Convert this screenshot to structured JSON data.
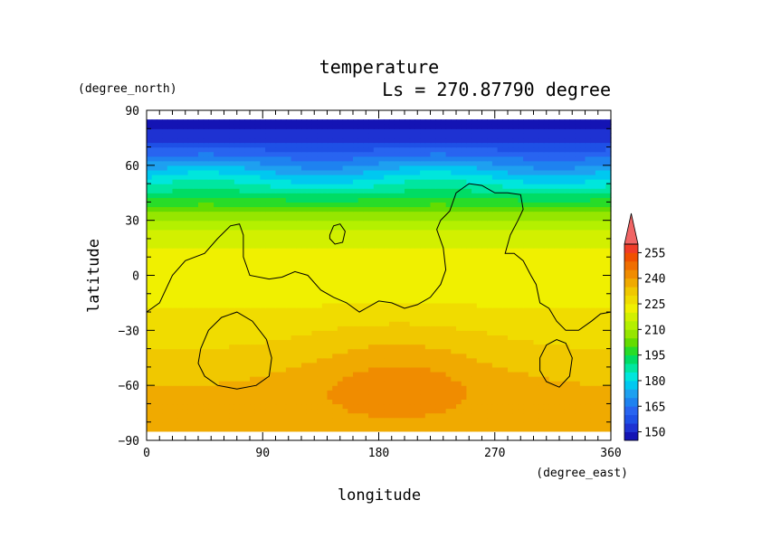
{
  "chart_data": {
    "type": "heatmap",
    "title": "temperature",
    "subtitle": "Ls = 270.87790 degree",
    "xlabel": "longitude",
    "ylabel": "latitude",
    "x_units": "(degree_east)",
    "y_units": "(degree_north)",
    "xlim": [
      0,
      360
    ],
    "ylim": [
      -90,
      90
    ],
    "data_lon_range": [
      0,
      360
    ],
    "data_lat_range": [
      -85,
      85
    ],
    "x_ticks": [
      "0",
      "90",
      "180",
      "270",
      "360"
    ],
    "x_tick_values": [
      0,
      90,
      180,
      270,
      360
    ],
    "y_ticks": [
      "90",
      "60",
      "30",
      "0",
      "−30",
      "−60",
      "−90"
    ],
    "y_tick_values": [
      90,
      60,
      30,
      0,
      -30,
      -60,
      -90
    ],
    "colorbar": {
      "levels": [
        145,
        150,
        155,
        160,
        165,
        170,
        175,
        180,
        185,
        190,
        195,
        200,
        205,
        210,
        215,
        220,
        225,
        230,
        235,
        240,
        245,
        250,
        255,
        260
      ],
      "colors": [
        "#1414b4",
        "#1e32d2",
        "#1e50e6",
        "#2864f0",
        "#1e82f0",
        "#1ea0f0",
        "#00c8f0",
        "#00e6dc",
        "#00e6a0",
        "#00dc64",
        "#28dc28",
        "#64dc00",
        "#96e600",
        "#b4f000",
        "#d2f000",
        "#f0f000",
        "#f0dc00",
        "#f0c800",
        "#f0aa00",
        "#f08c00",
        "#f06e00",
        "#f05000",
        "#f03c28",
        "#f06464"
      ],
      "tick_labels": [
        "150",
        "165",
        "180",
        "195",
        "210",
        "225",
        "240",
        "255"
      ],
      "tick_values": [
        150,
        165,
        180,
        195,
        210,
        225,
        240,
        255
      ],
      "extend": "max"
    },
    "lat_profile": {
      "lat": [
        -85,
        -75,
        -65,
        -55,
        -45,
        -35,
        -25,
        -15,
        -5,
        5,
        15,
        25,
        35,
        45,
        55,
        65,
        75,
        85
      ],
      "temperature": [
        235,
        236,
        236,
        234,
        231,
        229,
        227,
        224,
        223,
        222,
        220,
        215,
        205,
        190,
        178,
        165,
        152,
        148
      ]
    },
    "warm_region": {
      "lon_center": 195,
      "lat_center": -55,
      "lon_radius": 75,
      "lat_radius": 28,
      "peak_anomaly": 8
    },
    "contours": [
      {
        "name": "western",
        "points": [
          [
            0,
            -20
          ],
          [
            10,
            -15
          ],
          [
            20,
            0
          ],
          [
            30,
            8
          ],
          [
            45,
            12
          ],
          [
            55,
            20
          ],
          [
            65,
            27
          ],
          [
            72,
            28
          ],
          [
            75,
            22
          ],
          [
            75,
            10
          ],
          [
            80,
            0
          ],
          [
            95,
            -2
          ],
          [
            105,
            -1
          ],
          [
            115,
            2
          ],
          [
            125,
            0
          ],
          [
            135,
            -8
          ],
          [
            145,
            -12
          ],
          [
            155,
            -15
          ],
          [
            165,
            -20
          ],
          [
            170,
            -18
          ],
          [
            180,
            -14
          ],
          [
            190,
            -15
          ],
          [
            200,
            -18
          ],
          [
            210,
            -16
          ],
          [
            220,
            -12
          ],
          [
            228,
            -5
          ],
          [
            232,
            3
          ],
          [
            230,
            15
          ],
          [
            225,
            25
          ],
          [
            228,
            30
          ],
          [
            235,
            35
          ],
          [
            240,
            45
          ],
          [
            250,
            50
          ],
          [
            260,
            49
          ],
          [
            270,
            45
          ],
          [
            280,
            45
          ],
          [
            290,
            44
          ],
          [
            292,
            36
          ],
          [
            288,
            30
          ],
          [
            282,
            22
          ],
          [
            278,
            12
          ],
          [
            285,
            12
          ],
          [
            292,
            8
          ],
          [
            298,
            0
          ],
          [
            302,
            -5
          ],
          [
            305,
            -15
          ],
          [
            312,
            -18
          ],
          [
            318,
            -25
          ],
          [
            325,
            -30
          ],
          [
            335,
            -30
          ],
          [
            345,
            -25
          ],
          [
            352,
            -21
          ],
          [
            360,
            -20
          ]
        ]
      },
      {
        "name": "small-north",
        "points": [
          [
            142,
            22
          ],
          [
            145,
            27
          ],
          [
            150,
            28
          ],
          [
            154,
            24
          ],
          [
            152,
            18
          ],
          [
            146,
            17
          ],
          [
            142,
            20
          ],
          [
            142,
            22
          ]
        ]
      },
      {
        "name": "south-west",
        "points": [
          [
            42,
            -40
          ],
          [
            48,
            -30
          ],
          [
            58,
            -23
          ],
          [
            70,
            -20
          ],
          [
            82,
            -25
          ],
          [
            93,
            -35
          ],
          [
            97,
            -45
          ],
          [
            95,
            -55
          ],
          [
            85,
            -60
          ],
          [
            70,
            -62
          ],
          [
            55,
            -60
          ],
          [
            45,
            -55
          ],
          [
            40,
            -48
          ],
          [
            42,
            -40
          ]
        ]
      },
      {
        "name": "south-east",
        "points": [
          [
            305,
            -45
          ],
          [
            310,
            -38
          ],
          [
            318,
            -35
          ],
          [
            325,
            -37
          ],
          [
            330,
            -45
          ],
          [
            328,
            -55
          ],
          [
            320,
            -61
          ],
          [
            310,
            -58
          ],
          [
            305,
            -52
          ],
          [
            305,
            -45
          ]
        ]
      }
    ]
  }
}
